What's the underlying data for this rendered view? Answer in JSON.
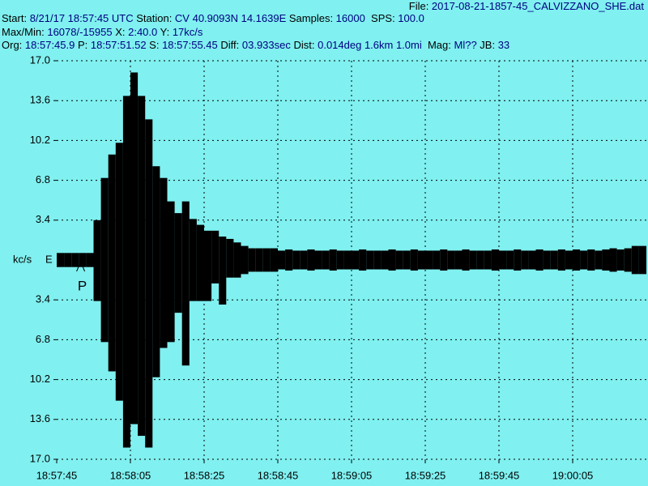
{
  "chart_data": {
    "type": "seismogram",
    "header_lines": [
      [
        "File: ",
        "2017-08-21-1857-45_CALVIZZANO_SHE.dat"
      ],
      [
        "Start: ",
        "8/21/17 18:57:45 UTC",
        " Station: ",
        "CV 40.9093N 14.1639E",
        " Samples: ",
        "16000",
        "  SPS: ",
        "100.0"
      ],
      [
        "Max/Min: ",
        "16078/-15955",
        " X: ",
        "2:40.0",
        " Y: ",
        "17kc/s"
      ],
      [
        "Org: ",
        "18:57:45.9",
        " P: ",
        "18:57:51.52",
        " S: ",
        "18:57:55.45",
        " Diff: ",
        "03.933sec",
        " Dist: ",
        "0.014deg 1.6km 1.0mi",
        "  Mag: ",
        "Ml??",
        " JB: ",
        "33"
      ]
    ],
    "y_label": "kc/s",
    "component": "E",
    "annotations": [
      {
        "text": "P",
        "x": 6.5
      }
    ],
    "bin_seconds": 2,
    "series": [
      {
        "name": "max",
        "color": "#000000",
        "values": [
          0.6,
          0.6,
          0.6,
          0.6,
          0.6,
          3.4,
          7,
          9,
          10,
          14,
          16,
          14,
          12,
          8,
          7,
          5,
          4,
          5,
          3.5,
          3,
          2.5,
          2.5,
          2,
          1.8,
          1.5,
          1.2,
          1,
          1,
          1,
          1,
          0.8,
          0.9,
          0.8,
          0.8,
          0.9,
          0.8,
          0.8,
          0.9,
          0.8,
          0.8,
          0.8,
          0.9,
          0.8,
          0.8,
          0.8,
          0.9,
          0.8,
          0.8,
          0.9,
          0.8,
          0.8,
          0.8,
          0.9,
          0.8,
          0.8,
          0.9,
          0.8,
          0.8,
          0.8,
          0.9,
          0.8,
          0.8,
          0.9,
          0.8,
          0.8,
          0.9,
          0.8,
          0.8,
          0.9,
          0.8,
          0.9,
          0.8,
          0.9,
          0.8,
          0.9,
          1,
          0.9,
          1,
          1.2,
          1.2
        ]
      },
      {
        "name": "min",
        "color": "#000000",
        "values": [
          -0.6,
          -0.6,
          -0.6,
          -0.6,
          -0.6,
          -3.5,
          -7,
          -9.5,
          -12,
          -16,
          -14,
          -15,
          -16,
          -10,
          -7.5,
          -7,
          -4.5,
          -9,
          -3.5,
          -3.5,
          -3.5,
          -2,
          -3.8,
          -1.5,
          -1.5,
          -1.2,
          -1,
          -1,
          -1,
          -1,
          -0.8,
          -0.9,
          -0.8,
          -0.8,
          -0.9,
          -0.8,
          -0.8,
          -0.9,
          -0.8,
          -0.8,
          -0.8,
          -0.9,
          -0.8,
          -0.8,
          -0.8,
          -0.9,
          -0.8,
          -0.8,
          -0.9,
          -0.8,
          -0.8,
          -0.8,
          -0.9,
          -0.8,
          -0.8,
          -0.9,
          -0.8,
          -0.8,
          -0.8,
          -0.9,
          -0.8,
          -0.8,
          -0.9,
          -0.8,
          -0.8,
          -0.9,
          -0.8,
          -0.8,
          -0.9,
          -0.8,
          -0.9,
          -0.8,
          -0.9,
          -0.8,
          -0.9,
          -1,
          -0.9,
          -1,
          -1.2,
          -1.2
        ]
      }
    ],
    "xlim": [
      0,
      160
    ],
    "xticks": [
      {
        "value": 0,
        "label": "18:57:45"
      },
      {
        "value": 20,
        "label": "18:58:05"
      },
      {
        "value": 40,
        "label": "18:58:25"
      },
      {
        "value": 60,
        "label": "18:58:45"
      },
      {
        "value": 80,
        "label": "18:59:05"
      },
      {
        "value": 100,
        "label": "18:59:25"
      },
      {
        "value": 120,
        "label": "18:59:45"
      },
      {
        "value": 140,
        "label": "19:00:05"
      }
    ],
    "ylim": [
      -17,
      17
    ],
    "yticks": [
      {
        "value": 17,
        "label": "17.0"
      },
      {
        "value": 13.6,
        "label": "13.6"
      },
      {
        "value": 10.2,
        "label": "10.2"
      },
      {
        "value": 6.8,
        "label": "6.8"
      },
      {
        "value": 3.4,
        "label": "3.4"
      },
      {
        "value": -3.4,
        "label": "3.4"
      },
      {
        "value": -6.8,
        "label": "6.8"
      },
      {
        "value": -10.2,
        "label": "10.2"
      },
      {
        "value": -13.6,
        "label": "13.6"
      },
      {
        "value": -17,
        "label": "17.0"
      }
    ],
    "grid": true
  }
}
